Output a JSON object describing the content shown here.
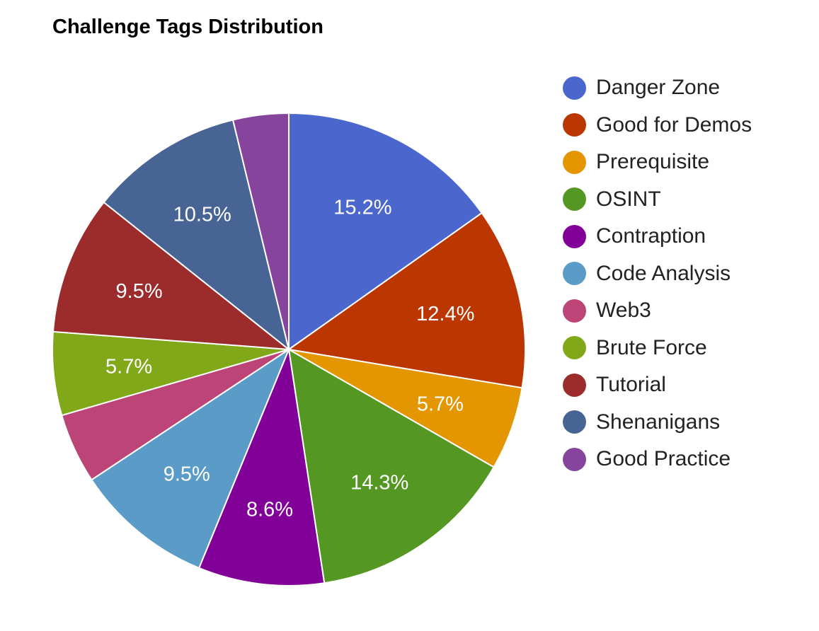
{
  "chart_data": {
    "type": "pie",
    "title": "Challenge Tags Distribution",
    "legend_position": "right",
    "start_angle_deg": 0,
    "slices": [
      {
        "name": "Danger Zone",
        "value": 15.2,
        "label": "15.2%",
        "color": "#4b67ce"
      },
      {
        "name": "Good for Demos",
        "value": 12.4,
        "label": "12.4%",
        "color": "#bb3601"
      },
      {
        "name": "Prerequisite",
        "value": 5.7,
        "label": "5.7%",
        "color": "#e39600"
      },
      {
        "name": "OSINT",
        "value": 14.3,
        "label": "14.3%",
        "color": "#549723"
      },
      {
        "name": "Contraption",
        "value": 8.6,
        "label": "8.6%",
        "color": "#800098"
      },
      {
        "name": "Code Analysis",
        "value": 9.5,
        "label": "9.5%",
        "color": "#5a9bc7"
      },
      {
        "name": "Web3",
        "value": 4.8,
        "label": "",
        "color": "#bd4476"
      },
      {
        "name": "Brute Force",
        "value": 5.7,
        "label": "5.7%",
        "color": "#80a818"
      },
      {
        "name": "Tutorial",
        "value": 9.5,
        "label": "9.5%",
        "color": "#9b2c2b"
      },
      {
        "name": "Shenanigans",
        "value": 10.5,
        "label": "10.5%",
        "color": "#486494"
      },
      {
        "name": "Good Practice",
        "value": 3.8,
        "label": "",
        "color": "#86449d"
      }
    ]
  }
}
